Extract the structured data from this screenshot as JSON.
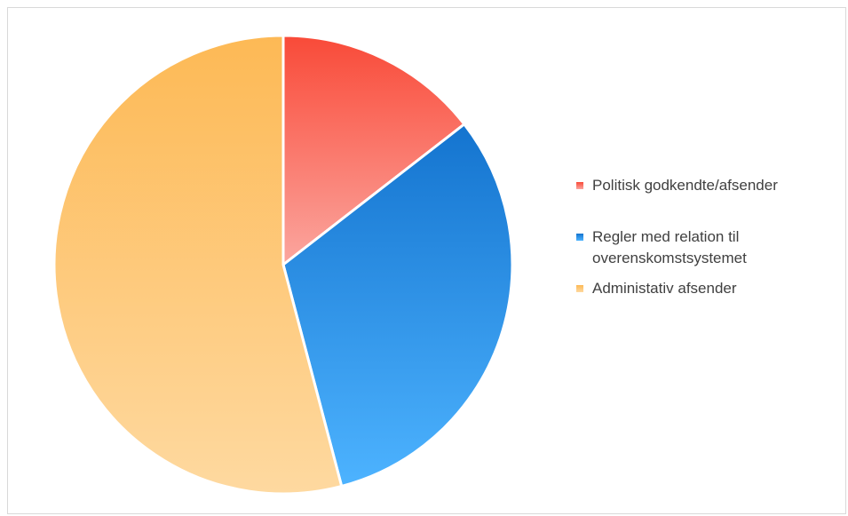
{
  "chart_data": {
    "type": "pie",
    "title": "",
    "slices": [
      {
        "label": "Politisk godkendte/afsender",
        "value": 14.5,
        "color_top": "#f94a38",
        "color_bottom": "#fba69f"
      },
      {
        "label": "Regler med relation til overenskomstsystemet",
        "value": 31.4,
        "color_top": "#1474cf",
        "color_bottom": "#4db3ff"
      },
      {
        "label": "Administativ afsender",
        "value": 54.1,
        "color_top": "#fdb955",
        "color_bottom": "#fed9a0"
      }
    ],
    "legend": {
      "position": "right",
      "lines": [
        [
          "Politisk godkendte/afsender"
        ],
        [
          "Regler med relation til",
          "overenskomstsystemet"
        ],
        [
          "Administativ afsender"
        ]
      ]
    }
  }
}
